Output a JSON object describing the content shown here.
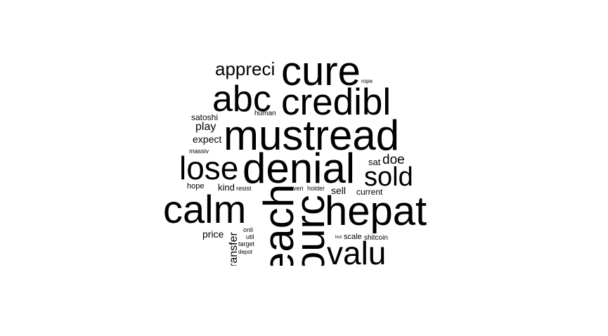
{
  "word_cloud": {
    "words": [
      {
        "text": "cure"
      },
      {
        "text": "appreci"
      },
      {
        "text": "rope"
      },
      {
        "text": "abc"
      },
      {
        "text": "credibl"
      },
      {
        "text": "satoshi"
      },
      {
        "text": "human"
      },
      {
        "text": "play"
      },
      {
        "text": "expect"
      },
      {
        "text": "massiv"
      },
      {
        "text": "mustread"
      },
      {
        "text": "lose"
      },
      {
        "text": "denial"
      },
      {
        "text": "sat"
      },
      {
        "text": "doe"
      },
      {
        "text": "sold"
      },
      {
        "text": "hope"
      },
      {
        "text": "kind"
      },
      {
        "text": "resist"
      },
      {
        "text": "everi"
      },
      {
        "text": "holder"
      },
      {
        "text": "sell"
      },
      {
        "text": "current"
      },
      {
        "text": "calm"
      },
      {
        "text": "hepat"
      },
      {
        "text": "onli"
      },
      {
        "text": "price"
      },
      {
        "text": "util"
      },
      {
        "text": "target"
      },
      {
        "text": "depot"
      },
      {
        "text": "lisd"
      },
      {
        "text": "scale"
      },
      {
        "text": "shitcoin"
      },
      {
        "text": "valu"
      },
      {
        "text": "ransfer"
      },
      {
        "text": "each"
      },
      {
        "text": "ourc"
      }
    ]
  }
}
